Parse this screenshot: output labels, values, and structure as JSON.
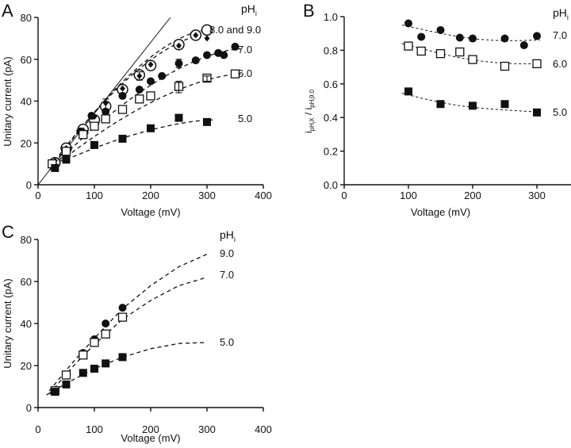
{
  "chart_data": [
    {
      "panel": "A",
      "type": "scatter",
      "title": "",
      "xlabel": "Voltage (mV)",
      "ylabel": "Unitary current (pA)",
      "xlim": [
        0,
        400
      ],
      "ylim": [
        0,
        80
      ],
      "xticks": [
        0,
        100,
        200,
        300,
        400
      ],
      "yticks": [
        0,
        20,
        40,
        60,
        80
      ],
      "grid": false,
      "legend_title": "pHi",
      "reference_line": {
        "style": "solid",
        "points": [
          [
            0,
            0
          ],
          [
            235,
            80
          ]
        ]
      },
      "series": [
        {
          "name": "9.0",
          "label": "8.0 and 9.0",
          "marker": "open-circle",
          "x": [
            30,
            50,
            80,
            100,
            120,
            150,
            180,
            200,
            250,
            280,
            300
          ],
          "y": [
            10.5,
            17.5,
            26.5,
            31,
            37.5,
            45.5,
            52.5,
            57,
            67,
            71.5,
            74
          ]
        },
        {
          "name": "8.0",
          "label": "8.0 and 9.0",
          "marker": "filled-diamond",
          "x": [
            30,
            50,
            80,
            100,
            120,
            150,
            180,
            200,
            250,
            280,
            300
          ],
          "y": [
            11.5,
            17.5,
            26,
            32.5,
            39,
            46,
            52,
            57.5,
            66.5,
            71.5,
            70
          ]
        },
        {
          "name": "7.0",
          "label": "7.0",
          "marker": "filled-circle",
          "x": [
            30,
            50,
            75,
            95,
            120,
            150,
            180,
            200,
            220,
            250,
            280,
            300,
            320,
            330,
            350
          ],
          "y": [
            8.5,
            15.5,
            25.5,
            33,
            35,
            42.5,
            45.5,
            49.5,
            52,
            58,
            59.5,
            62,
            63,
            62,
            66
          ]
        },
        {
          "name": "6.0",
          "label": "6.0",
          "marker": "open-square",
          "x": [
            25,
            50,
            80,
            100,
            120,
            150,
            180,
            200,
            250,
            300,
            350
          ],
          "y": [
            10,
            16,
            24,
            28,
            31.5,
            36,
            41,
            42.5,
            47,
            51,
            53
          ]
        },
        {
          "name": "5.0",
          "label": "5.0",
          "marker": "filled-square",
          "x": [
            30,
            50,
            100,
            150,
            200,
            250,
            300
          ],
          "y": [
            8,
            12,
            19,
            22,
            27,
            32,
            30
          ]
        }
      ],
      "fits": [
        {
          "name": "9.0",
          "x": [
            30,
            300
          ],
          "y": [
            10.5,
            74
          ]
        },
        {
          "name": "8.0",
          "x": [
            30,
            300
          ],
          "y": [
            11.5,
            72
          ]
        },
        {
          "name": "7.0",
          "x": [
            20,
            360
          ],
          "y": [
            7,
            65
          ]
        },
        {
          "name": "6.0",
          "x": [
            20,
            360
          ],
          "y": [
            7,
            53
          ]
        },
        {
          "name": "5.0",
          "x": [
            50,
            310
          ],
          "y": [
            12,
            31
          ]
        }
      ]
    },
    {
      "panel": "B",
      "type": "scatter",
      "title": "",
      "xlabel": "Voltage (mV)",
      "ylabel": "i pHi X / i pHi 9.0",
      "xlim": [
        0,
        350
      ],
      "ylim": [
        0,
        1.0
      ],
      "xticks": [
        0,
        100,
        200,
        300
      ],
      "yticks": [
        0.0,
        0.2,
        0.4,
        0.6,
        0.8,
        1.0
      ],
      "grid": false,
      "legend_title": "pHi",
      "series": [
        {
          "name": "7.0",
          "label": "7.0",
          "marker": "filled-circle",
          "x": [
            100,
            120,
            150,
            180,
            200,
            250,
            280,
            300
          ],
          "y": [
            0.96,
            0.88,
            0.92,
            0.875,
            0.87,
            0.87,
            0.83,
            0.885
          ]
        },
        {
          "name": "6.0",
          "label": "6.0",
          "marker": "open-square",
          "x": [
            100,
            120,
            150,
            180,
            200,
            250,
            300
          ],
          "y": [
            0.825,
            0.795,
            0.78,
            0.79,
            0.745,
            0.705,
            0.72
          ]
        },
        {
          "name": "5.0",
          "label": "5.0",
          "marker": "filled-square",
          "x": [
            100,
            150,
            200,
            250,
            300
          ],
          "y": [
            0.555,
            0.48,
            0.47,
            0.48,
            0.43
          ]
        }
      ],
      "fits": [
        {
          "name": "7.0",
          "x": [
            90,
            120,
            150,
            180,
            210,
            240,
            270,
            305
          ],
          "y": [
            0.95,
            0.925,
            0.9,
            0.88,
            0.865,
            0.858,
            0.857,
            0.862
          ]
        },
        {
          "name": "6.0",
          "x": [
            90,
            120,
            150,
            180,
            210,
            240,
            270,
            305
          ],
          "y": [
            0.84,
            0.81,
            0.78,
            0.755,
            0.737,
            0.725,
            0.72,
            0.72
          ]
        },
        {
          "name": "5.0",
          "x": [
            90,
            120,
            150,
            180,
            210,
            240,
            270,
            305
          ],
          "y": [
            0.545,
            0.515,
            0.49,
            0.47,
            0.457,
            0.447,
            0.44,
            0.432
          ]
        }
      ]
    },
    {
      "panel": "C",
      "type": "scatter",
      "title": "",
      "xlabel": "Voltage (mV)",
      "ylabel": "Unitary current (pA)",
      "xlim": [
        0,
        400
      ],
      "ylim": [
        0,
        80
      ],
      "xticks": [
        0,
        100,
        200,
        300,
        400
      ],
      "yticks": [
        0,
        20,
        40,
        60,
        80
      ],
      "grid": false,
      "legend_title": "pHi",
      "series": [
        {
          "name": "9.0",
          "label": "9.0",
          "marker": "filled-circle",
          "x": [
            80,
            100,
            120,
            150
          ],
          "y": [
            26,
            32.5,
            40,
            47.5
          ]
        },
        {
          "name": "7.0",
          "label": "7.0",
          "marker": "open-square",
          "x": [
            30,
            50,
            80,
            100,
            120,
            150
          ],
          "y": [
            8,
            15.5,
            25,
            31,
            35,
            43
          ]
        },
        {
          "name": "5.0",
          "label": "5.0",
          "marker": "filled-square",
          "x": [
            30,
            50,
            80,
            100,
            120,
            150
          ],
          "y": [
            7.5,
            11,
            16.5,
            18.5,
            21,
            24
          ]
        }
      ],
      "fits": [
        {
          "name": "9.0",
          "x": [
            20,
            60,
            100,
            150,
            200,
            250,
            300
          ],
          "y": [
            8,
            21,
            33,
            47,
            58,
            67,
            73
          ]
        },
        {
          "name": "7.0",
          "x": [
            20,
            60,
            100,
            150,
            200,
            250,
            300
          ],
          "y": [
            6.5,
            19,
            30,
            42,
            51,
            58,
            62
          ]
        },
        {
          "name": "5.0",
          "x": [
            15,
            50,
            100,
            150,
            200,
            250,
            300
          ],
          "y": [
            6,
            11.5,
            18.5,
            24,
            28,
            30.5,
            31
          ]
        }
      ]
    }
  ],
  "panels": {
    "A": {
      "letter": "A",
      "legend_title": "pH",
      "legend_sub": "i"
    },
    "B": {
      "letter": "B",
      "legend_title": "pH",
      "legend_sub": "i",
      "ylabel_parts": {
        "i1": "i",
        "sub1": "pH",
        "sub1_sub": "i",
        "sub1_x": "X",
        "slash": " / ",
        "i2": "i",
        "sub2": "pH",
        "sub2_sub": "i",
        "sub2_val": "9.0"
      }
    },
    "C": {
      "letter": "C",
      "legend_title": "pH",
      "legend_sub": "i"
    }
  }
}
